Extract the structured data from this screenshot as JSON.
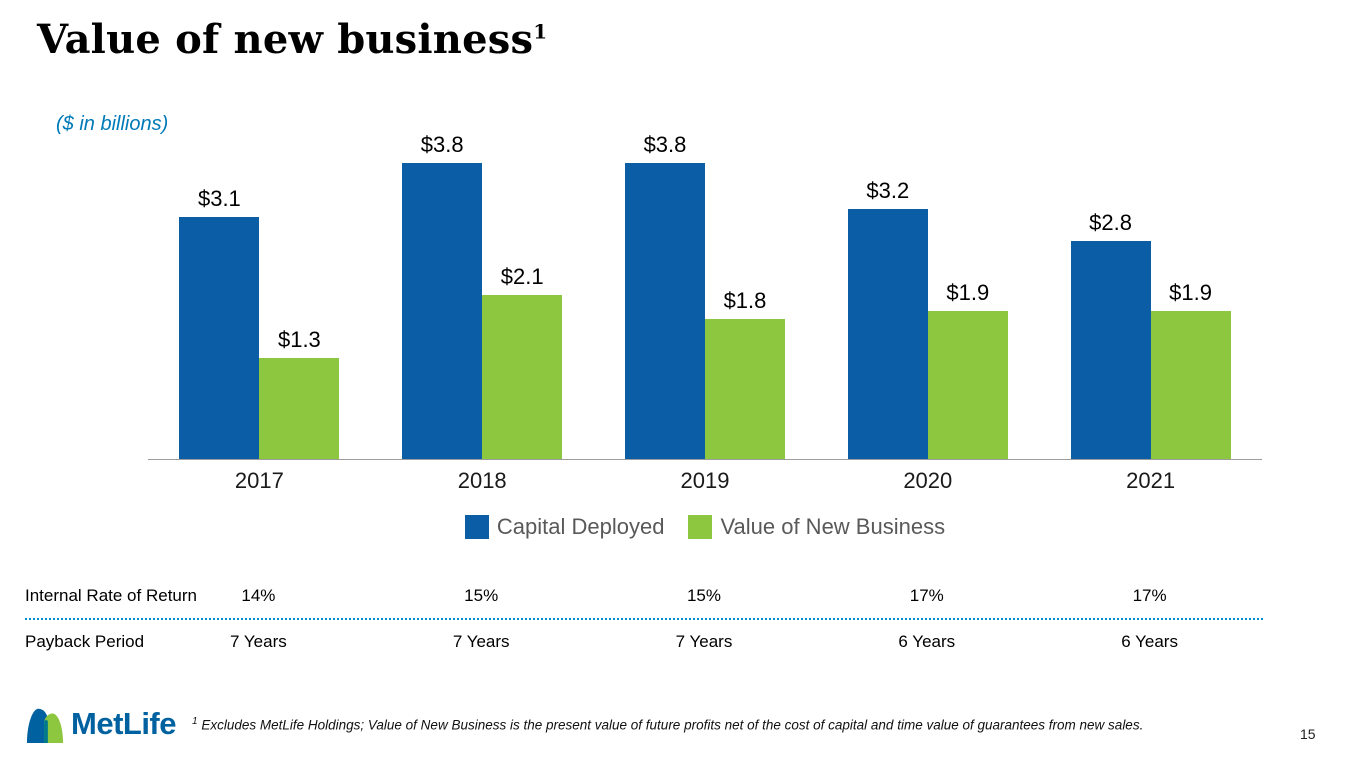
{
  "slide": {
    "title": "Value of new business",
    "title_superscript": "1",
    "units_note": "($ in billions)",
    "footnote_superscript": "1",
    "footnote": " Excludes MetLife Holdings; Value of New Business is the present value of future profits net of the cost of capital and time value of guarantees from new sales.",
    "page_number": "15",
    "logo_text": "MetLife"
  },
  "chart_data": {
    "type": "bar",
    "title": "Value of new business",
    "ylabel": "($ in billions)",
    "xlabel": "",
    "categories": [
      "2017",
      "2018",
      "2019",
      "2020",
      "2021"
    ],
    "series": [
      {
        "name": "Capital Deployed",
        "color": "#0B5EA6",
        "values": [
          3.1,
          3.8,
          3.8,
          3.2,
          2.8
        ],
        "labels": [
          "$3.1",
          "$3.8",
          "$3.8",
          "$3.2",
          "$2.8"
        ]
      },
      {
        "name": "Value of New Business",
        "color": "#8DC63F",
        "values": [
          1.3,
          2.1,
          1.8,
          1.9,
          1.9
        ],
        "labels": [
          "$1.3",
          "$2.1",
          "$1.8",
          "$1.9",
          "$1.9"
        ]
      }
    ],
    "ylim": [
      0,
      4
    ],
    "grid": false,
    "legend_position": "bottom"
  },
  "table": {
    "rows": [
      {
        "label": "Internal Rate of Return",
        "values": [
          "14%",
          "15%",
          "15%",
          "17%",
          "17%"
        ]
      },
      {
        "label": "Payback Period",
        "values": [
          "7 Years",
          "7 Years",
          "7 Years",
          "6 Years",
          "6 Years"
        ]
      }
    ]
  },
  "colors": {
    "brand_blue": "#0B5EA6",
    "brand_green": "#8DC63F",
    "logo_wordmark_blue": "#0061A0",
    "logo_overlap_teal": "#00798C",
    "units_note_blue": "#007AB8",
    "separator_dotted_blue": "#0090C9",
    "legend_text_gray": "#595959",
    "axis_line_gray": "#9D9D9D"
  }
}
